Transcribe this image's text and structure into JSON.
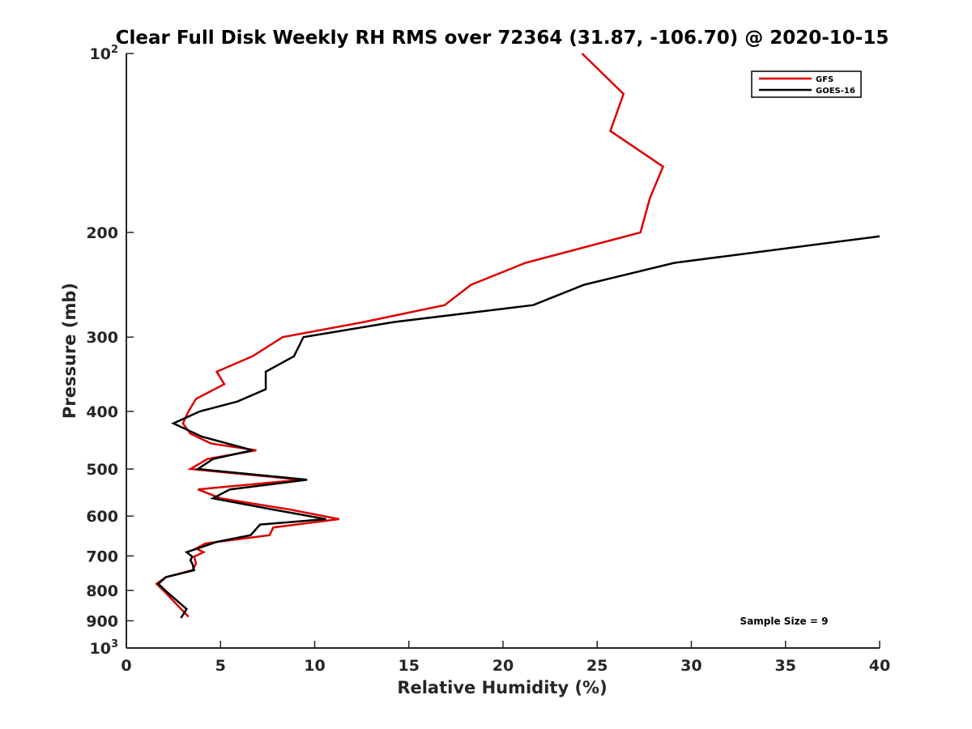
{
  "chart_data": {
    "type": "line",
    "title": "Clear Full Disk Weekly RH RMS over 72364 (31.87, -106.70) @ 2020-10-15",
    "xlabel": "Relative Humidity (%)",
    "ylabel": "Pressure (mb)",
    "xlim": [
      0,
      40
    ],
    "ylim": [
      100,
      1000
    ],
    "y_scale": "log",
    "y_reversed": true,
    "grid": false,
    "legend_position": "top-right",
    "x_ticks": [
      "0",
      "5",
      "10",
      "15",
      "20",
      "25",
      "30",
      "35",
      "40"
    ],
    "y_ticks": [
      {
        "value": 100,
        "base": "10",
        "exp": "2"
      },
      {
        "value": 200,
        "label": "200"
      },
      {
        "value": 300,
        "label": "300"
      },
      {
        "value": 400,
        "label": "400"
      },
      {
        "value": 500,
        "label": "500"
      },
      {
        "value": 600,
        "label": "600"
      },
      {
        "value": 700,
        "label": "700"
      },
      {
        "value": 800,
        "label": "800"
      },
      {
        "value": 900,
        "label": "900"
      },
      {
        "value": 1000,
        "base": "10",
        "exp": "3"
      }
    ],
    "annotation": "Sample Size = 9",
    "series": [
      {
        "name": "GFS",
        "color": "#dd0000",
        "points": [
          [
            24.2,
            100
          ],
          [
            26.4,
            117
          ],
          [
            25.7,
            135
          ],
          [
            28.5,
            155
          ],
          [
            27.8,
            175
          ],
          [
            27.3,
            200
          ],
          [
            21.2,
            225
          ],
          [
            18.3,
            245
          ],
          [
            16.9,
            265
          ],
          [
            12.6,
            283
          ],
          [
            8.3,
            300
          ],
          [
            6.7,
            323
          ],
          [
            4.8,
            343
          ],
          [
            5.2,
            360
          ],
          [
            3.7,
            381
          ],
          [
            3.3,
            400
          ],
          [
            3.0,
            419
          ],
          [
            3.4,
            436
          ],
          [
            4.5,
            453
          ],
          [
            6.9,
            465
          ],
          [
            4.3,
            481
          ],
          [
            3.4,
            500
          ],
          [
            9.3,
            521
          ],
          [
            3.8,
            541
          ],
          [
            5.0,
            560
          ],
          [
            8.7,
            585
          ],
          [
            11.3,
            607
          ],
          [
            7.8,
            627
          ],
          [
            7.6,
            646
          ],
          [
            4.2,
            667
          ],
          [
            3.7,
            680
          ],
          [
            4.1,
            690
          ],
          [
            3.6,
            702
          ],
          [
            3.7,
            721
          ],
          [
            3.5,
            740
          ],
          [
            2.1,
            760
          ],
          [
            1.6,
            780
          ],
          [
            2.0,
            802
          ],
          [
            2.6,
            840
          ],
          [
            3.3,
            886
          ]
        ]
      },
      {
        "name": "GOES-16",
        "color": "#000000",
        "points": [
          [
            40.0,
            203
          ],
          [
            29.1,
            225
          ],
          [
            24.3,
            245
          ],
          [
            21.6,
            265
          ],
          [
            14.2,
            283
          ],
          [
            9.4,
            300
          ],
          [
            8.9,
            323
          ],
          [
            7.4,
            343
          ],
          [
            7.4,
            367
          ],
          [
            5.9,
            385
          ],
          [
            3.9,
            400
          ],
          [
            2.5,
            419
          ],
          [
            4.0,
            441
          ],
          [
            6.7,
            465
          ],
          [
            4.6,
            481
          ],
          [
            3.8,
            500
          ],
          [
            9.6,
            521
          ],
          [
            5.5,
            541
          ],
          [
            4.6,
            560
          ],
          [
            7.8,
            585
          ],
          [
            10.6,
            607
          ],
          [
            7.1,
            620
          ],
          [
            6.6,
            646
          ],
          [
            4.8,
            663
          ],
          [
            3.2,
            690
          ],
          [
            3.5,
            702
          ],
          [
            3.4,
            712
          ],
          [
            3.5,
            721
          ],
          [
            3.6,
            740
          ],
          [
            2.1,
            760
          ],
          [
            1.7,
            780
          ],
          [
            2.1,
            802
          ],
          [
            3.2,
            860
          ],
          [
            2.9,
            890
          ]
        ]
      }
    ]
  }
}
